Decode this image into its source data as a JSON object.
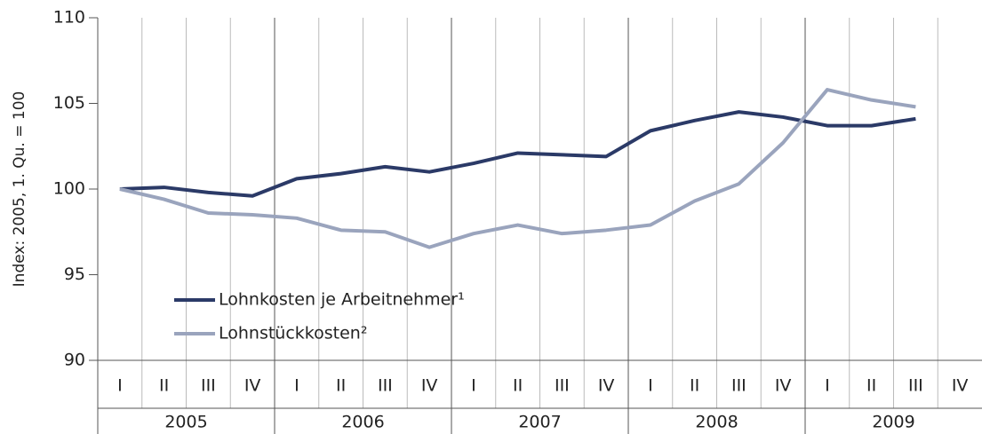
{
  "chart_data": {
    "type": "line",
    "y_label": "Index: 2005, 1. Qu. = 100",
    "categories": [
      "I",
      "II",
      "III",
      "IV",
      "I",
      "II",
      "III",
      "IV",
      "I",
      "II",
      "III",
      "IV",
      "I",
      "II",
      "III",
      "IV",
      "I",
      "II",
      "III",
      "IV"
    ],
    "years": [
      "2005",
      "2006",
      "2007",
      "2008",
      "2009"
    ],
    "series": [
      {
        "name": "Lohnkosten je Arbeitnehmer¹",
        "color": "#2b3a67",
        "values": [
          100,
          100.1,
          99.8,
          99.6,
          100.6,
          100.9,
          101.3,
          101.0,
          101.5,
          102.1,
          102.0,
          101.9,
          103.4,
          104.0,
          104.5,
          104.2,
          103.7,
          103.7,
          104.1,
          null
        ]
      },
      {
        "name": "Lohnstückkosten²",
        "color": "#9aa4bd",
        "values": [
          100,
          99.4,
          98.6,
          98.5,
          98.3,
          97.6,
          97.5,
          96.6,
          97.4,
          97.9,
          97.4,
          97.6,
          97.9,
          99.3,
          100.3,
          102.7,
          105.8,
          105.2,
          104.8,
          null
        ]
      }
    ],
    "ylim": [
      90,
      110
    ],
    "yticks": [
      90,
      95,
      100,
      105,
      110
    ],
    "legend": "lower left"
  }
}
